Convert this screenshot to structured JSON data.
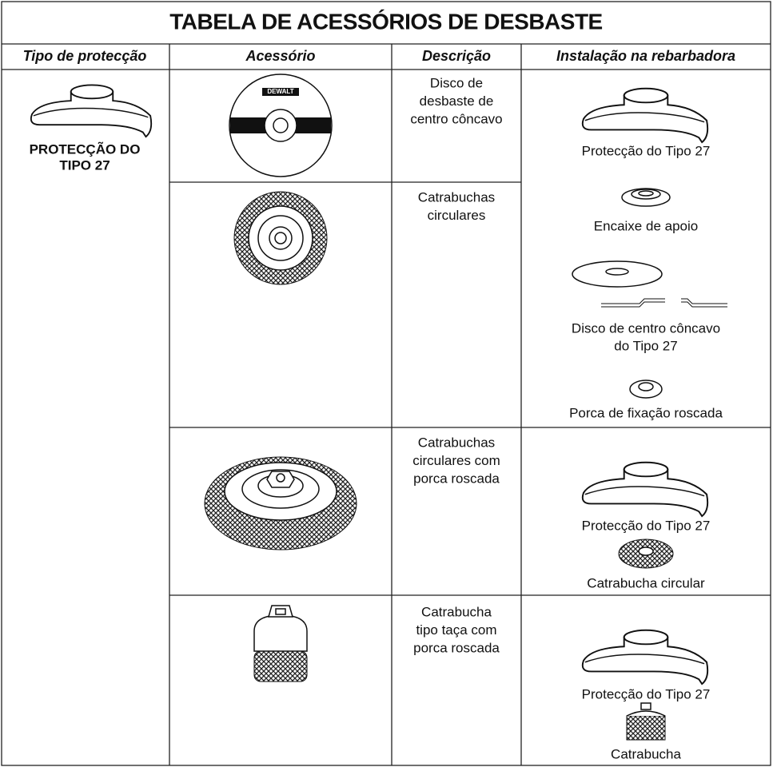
{
  "title": "TABELA DE ACESSÓRIOS DE DESBASTE",
  "table": {
    "headers": [
      "Tipo de protecção",
      "Acessório",
      "Descrição",
      "Instalação na rebarbadora"
    ],
    "guard_label": [
      "PROTECÇÃO DO",
      "TIPO 27"
    ],
    "brand": "DEWALT",
    "descriptions": [
      [
        "Disco de",
        "desbaste de",
        "centro côncavo"
      ],
      [
        "Catrabuchas",
        "circulares"
      ],
      [
        "Catrabuchas",
        "circulares com",
        "porca roscada"
      ],
      [
        "Catrabucha",
        "tipo taça com",
        "porca roscada"
      ]
    ],
    "installation": [
      [
        [
          "Protecção do Tipo 27"
        ],
        [
          "Encaixe de apoio"
        ],
        [
          "Disco de centro côncavo",
          "do Tipo 27"
        ],
        [
          "Porca de fixação roscada"
        ]
      ],
      [
        [
          "Protecção do Tipo 27"
        ],
        [
          "Catrabucha circular"
        ]
      ],
      [
        [
          "Protecção do Tipo 27"
        ],
        [
          "Catrabucha"
        ]
      ]
    ]
  }
}
